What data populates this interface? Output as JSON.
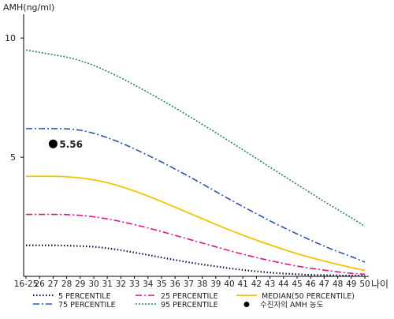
{
  "chart_data": {
    "type": "line",
    "ylabel": "AMH(ng/ml)",
    "xlabel": "나이",
    "ylim": [
      0,
      11
    ],
    "yticks": [
      5,
      10
    ],
    "x": [
      "16-25",
      "26",
      "27",
      "28",
      "29",
      "30",
      "31",
      "32",
      "33",
      "34",
      "35",
      "36",
      "37",
      "38",
      "39",
      "40",
      "41",
      "42",
      "43",
      "44",
      "45",
      "46",
      "47",
      "48",
      "49",
      "50"
    ],
    "grid": false,
    "legend_position": "bottom",
    "series": [
      {
        "name": "5 PERCENTILE",
        "color": "#0a1460",
        "dash": "1.5,2.5",
        "width": 2.2,
        "values": [
          1.3,
          1.3,
          1.3,
          1.29,
          1.27,
          1.24,
          1.18,
          1.1,
          1.0,
          0.9,
          0.79,
          0.69,
          0.59,
          0.5,
          0.42,
          0.34,
          0.27,
          0.21,
          0.16,
          0.12,
          0.09,
          0.06,
          0.05,
          0.04,
          0.03,
          0.03
        ]
      },
      {
        "name": "25 PERCENTILE",
        "color": "#e0148c",
        "dash": "8,3,2,3",
        "width": 1.6,
        "values": [
          2.6,
          2.6,
          2.6,
          2.59,
          2.56,
          2.5,
          2.41,
          2.3,
          2.17,
          2.03,
          1.88,
          1.72,
          1.56,
          1.4,
          1.24,
          1.08,
          0.93,
          0.79,
          0.66,
          0.54,
          0.43,
          0.34,
          0.26,
          0.19,
          0.13,
          0.09
        ]
      },
      {
        "name": "MEDIAN(50 PERCENTILE)",
        "color": "#f2c500",
        "dash": "",
        "width": 1.8,
        "values": [
          4.2,
          4.2,
          4.2,
          4.18,
          4.13,
          4.05,
          3.93,
          3.77,
          3.58,
          3.37,
          3.14,
          2.9,
          2.66,
          2.42,
          2.18,
          1.95,
          1.73,
          1.52,
          1.32,
          1.13,
          0.95,
          0.79,
          0.64,
          0.5,
          0.37,
          0.25
        ]
      },
      {
        "name": "75 PERCENTILE",
        "color": "#2d50b4",
        "dash": "8,3,2,3",
        "width": 1.6,
        "values": [
          6.2,
          6.2,
          6.2,
          6.19,
          6.13,
          6.0,
          5.82,
          5.6,
          5.35,
          5.08,
          4.8,
          4.5,
          4.2,
          3.88,
          3.56,
          3.24,
          2.93,
          2.63,
          2.33,
          2.05,
          1.78,
          1.52,
          1.27,
          1.04,
          0.83,
          0.6
        ]
      },
      {
        "name": "95 PERCENTILE",
        "color": "#208a5a",
        "dash": "2,2",
        "width": 1.6,
        "values": [
          9.5,
          9.4,
          9.3,
          9.2,
          9.05,
          8.85,
          8.6,
          8.33,
          8.03,
          7.72,
          7.4,
          7.07,
          6.73,
          6.38,
          6.03,
          5.67,
          5.31,
          4.95,
          4.58,
          4.22,
          3.86,
          3.5,
          3.14,
          2.8,
          2.46,
          2.1
        ]
      }
    ],
    "patient_point": {
      "name": "수진자의 AMH 농도",
      "x": "27",
      "value": 5.56,
      "label": "5.56",
      "color": "#000000"
    }
  }
}
